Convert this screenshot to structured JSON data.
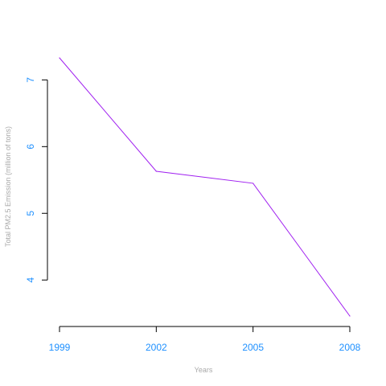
{
  "chart_data": {
    "type": "line",
    "title": "",
    "xlabel": "Years",
    "ylabel": "Total PM2.5 Emission (million of tons)",
    "x": [
      1999,
      2002,
      2005,
      2008
    ],
    "x_tick_labels": [
      "1999",
      "2002",
      "2005",
      "2008"
    ],
    "y_ticks": [
      4,
      5,
      6,
      7
    ],
    "y_tick_labels": [
      "4",
      "5",
      "6",
      "7"
    ],
    "series": [
      {
        "values": [
          7.33,
          5.63,
          5.45,
          3.46
        ],
        "color": "#a020f0"
      }
    ],
    "xlim": [
      1999,
      2008
    ],
    "ylim": [
      3.46,
      7.33
    ],
    "grid": false,
    "legend": "none",
    "colors": {
      "axis": "#000000",
      "tick_label": "#1e90ff",
      "axis_title": "#a9a9a9"
    }
  }
}
